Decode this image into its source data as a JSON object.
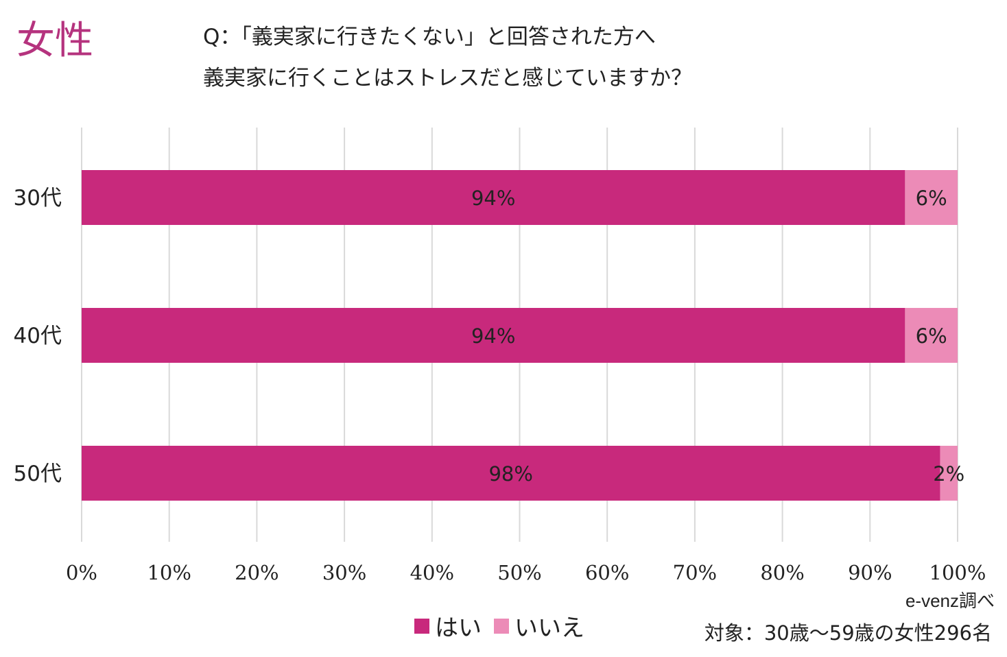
{
  "header": {
    "gender_label": "女性",
    "question_line1": "Q：「義実家に行きたくない」と回答された方へ",
    "question_line2": "義実家に行くことはストレスだと感じていますか？"
  },
  "footer": {
    "source": "e-venz調べ",
    "target": "対象：30歳〜59歳の女性296名"
  },
  "colors": {
    "yes": "#c8297c",
    "no": "#ec8bb7",
    "grid": "#d9d9d9"
  },
  "chart_data": {
    "type": "bar",
    "orientation": "horizontal",
    "stacked": true,
    "categories": [
      "30代",
      "40代",
      "50代"
    ],
    "series": [
      {
        "name": "はい",
        "values": [
          94,
          94,
          98
        ],
        "labels": [
          "94%",
          "94%",
          "98%"
        ]
      },
      {
        "name": "いいえ",
        "values": [
          6,
          6,
          2
        ],
        "labels": [
          "6%",
          "6%",
          "2%"
        ]
      }
    ],
    "xlim": [
      0,
      100
    ],
    "xticks": [
      "0%",
      "10%",
      "20%",
      "30%",
      "40%",
      "50%",
      "60%",
      "70%",
      "80%",
      "90%",
      "100%"
    ],
    "grid": true,
    "legend_position": "bottom"
  }
}
